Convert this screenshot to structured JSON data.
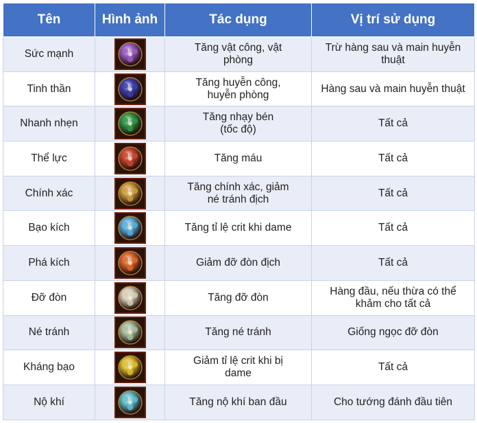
{
  "headers": [
    "Tên",
    "Hình ảnh",
    "Tác dụng",
    "Vị trí sử dụng"
  ],
  "rows": [
    {
      "name": "Sức mạnh",
      "icon": "purple-gem-icon",
      "effect": "Tăng vật công, vật phòng",
      "position": "Trừ hàng sau và main huyễn thuật",
      "color": "#9a5cc8"
    },
    {
      "name": "Tinh thần",
      "icon": "blue-gem-icon",
      "effect": "Tăng huyễn công, huyễn phòng",
      "position": "Hàng sau và main huyễn thuật",
      "color": "#3f3fb0"
    },
    {
      "name": "Nhanh nhẹn",
      "icon": "green-gem-icon",
      "effect": "Tăng nhạy bén\n(tốc độ)",
      "position": "Tất cả",
      "color": "#2f9a4a"
    },
    {
      "name": "Thể lực",
      "icon": "red-gem-icon",
      "effect": "Tăng máu",
      "position": "Tất cả",
      "color": "#c84830"
    },
    {
      "name": "Chính xác",
      "icon": "gold-gem-icon",
      "effect": "Tăng chính xác, giảm né tránh địch",
      "position": "Tất cả",
      "color": "#d0a040"
    },
    {
      "name": "Bạo kích",
      "icon": "ice-gem-icon",
      "effect": "Tăng tỉ lệ crit khi dame",
      "position": "Tất cả",
      "color": "#5ab0e0"
    },
    {
      "name": "Phá kích",
      "icon": "orange-gem-icon",
      "effect": "Giảm đỡ đòn địch",
      "position": "Tất cả",
      "color": "#e06a30"
    },
    {
      "name": "Đỡ đòn",
      "icon": "white-gem-icon",
      "effect": "Tăng đỡ đòn",
      "position": "Hàng đầu, nếu thừa có thể khảm cho tất cả",
      "color": "#d8d0b8"
    },
    {
      "name": "Né tránh",
      "icon": "silver-gem-icon",
      "effect": "Tăng né tránh",
      "position": "Giống ngọc đỡ đòn",
      "color": "#a8c0a0"
    },
    {
      "name": "Kháng bạo",
      "icon": "yellow-gem-icon",
      "effect": "Giảm tỉ lệ crit khi bị dame",
      "position": "Tất cả",
      "color": "#e0c030"
    },
    {
      "name": "Nộ khí",
      "icon": "cyan-gem-icon",
      "effect": "Tăng nộ khí ban đầu",
      "position": "Cho tướng đánh đầu tiên",
      "color": "#60c0d0"
    }
  ]
}
